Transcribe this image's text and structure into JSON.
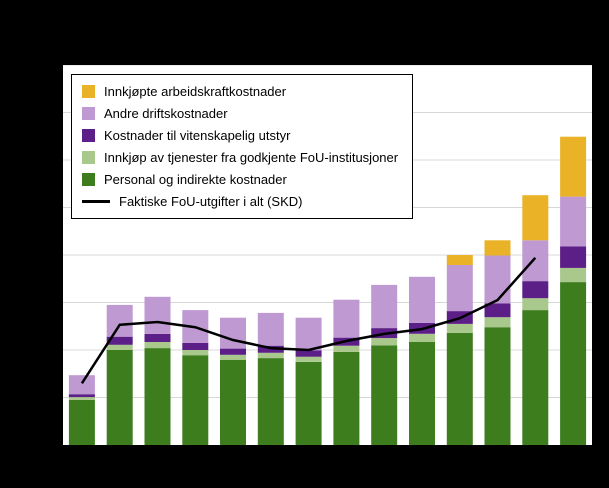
{
  "chart_data": {
    "type": "bar",
    "stacked": true,
    "title": "",
    "xlabel": "",
    "ylabel": "",
    "ylim": [
      0,
      8
    ],
    "grid": true,
    "gridline_step": 1,
    "grid_color": "#d8d8d8",
    "plot_background": "#ffffff",
    "figure_background": "#000000",
    "legend_position": "top-left",
    "categories": [
      "",
      "",
      "",
      "",
      "",
      "",
      "",
      "",
      "",
      "",
      "",
      "",
      "",
      ""
    ],
    "series": [
      {
        "name": "Personal og indirekte kostnader",
        "color": "#3e7d1e",
        "values": [
          0.95,
          2.0,
          2.04,
          1.89,
          1.79,
          1.83,
          1.75,
          1.96,
          2.1,
          2.17,
          2.36,
          2.48,
          2.84,
          3.43
        ]
      },
      {
        "name": "Innkjøp av tjenester fra godkjente FoU-institusjoner",
        "color": "#a9c88c",
        "values": [
          0.06,
          0.11,
          0.13,
          0.11,
          0.11,
          0.11,
          0.11,
          0.13,
          0.15,
          0.17,
          0.19,
          0.21,
          0.25,
          0.3
        ]
      },
      {
        "name": "Kostnader til vitenskapelig utstyr",
        "color": "#5b1f87",
        "values": [
          0.06,
          0.17,
          0.17,
          0.15,
          0.13,
          0.15,
          0.13,
          0.17,
          0.21,
          0.23,
          0.27,
          0.29,
          0.36,
          0.45
        ]
      },
      {
        "name": "Andre driftskostnader",
        "color": "#bf99d1",
        "values": [
          0.4,
          0.67,
          0.78,
          0.69,
          0.65,
          0.69,
          0.69,
          0.8,
          0.91,
          0.97,
          0.97,
          1.01,
          0.86,
          1.05
        ]
      },
      {
        "name": "Innkjøpte arbeidskraftkostnader",
        "color": "#eab227",
        "values": [
          0,
          0,
          0,
          0,
          0,
          0,
          0,
          0,
          0,
          0,
          0.21,
          0.32,
          0.95,
          1.26
        ]
      }
    ],
    "line_series": {
      "name": "Faktiske FoU-utgifter i alt (SKD)",
      "color": "#000000",
      "values": [
        1.3,
        2.53,
        2.59,
        2.48,
        2.21,
        2.04,
        2.0,
        2.19,
        2.34,
        2.44,
        2.67,
        3.05,
        3.94,
        null
      ]
    }
  },
  "legend": {
    "items": [
      {
        "label": "Innkjøpte arbeidskraftkostnader",
        "color": "#eab227",
        "type": "square"
      },
      {
        "label": "Andre driftskostnader",
        "color": "#bf99d1",
        "type": "square"
      },
      {
        "label": "Kostnader til vitenskapelig utstyr",
        "color": "#5b1f87",
        "type": "square"
      },
      {
        "label": "Innkjøp av tjenester fra godkjente FoU-institusjoner",
        "color": "#a9c88c",
        "type": "square"
      },
      {
        "label": "Personal og indirekte kostnader",
        "color": "#3e7d1e",
        "type": "square"
      },
      {
        "label": "Faktiske FoU-utgifter i alt (SKD)",
        "color": "#000000",
        "type": "line"
      }
    ]
  }
}
